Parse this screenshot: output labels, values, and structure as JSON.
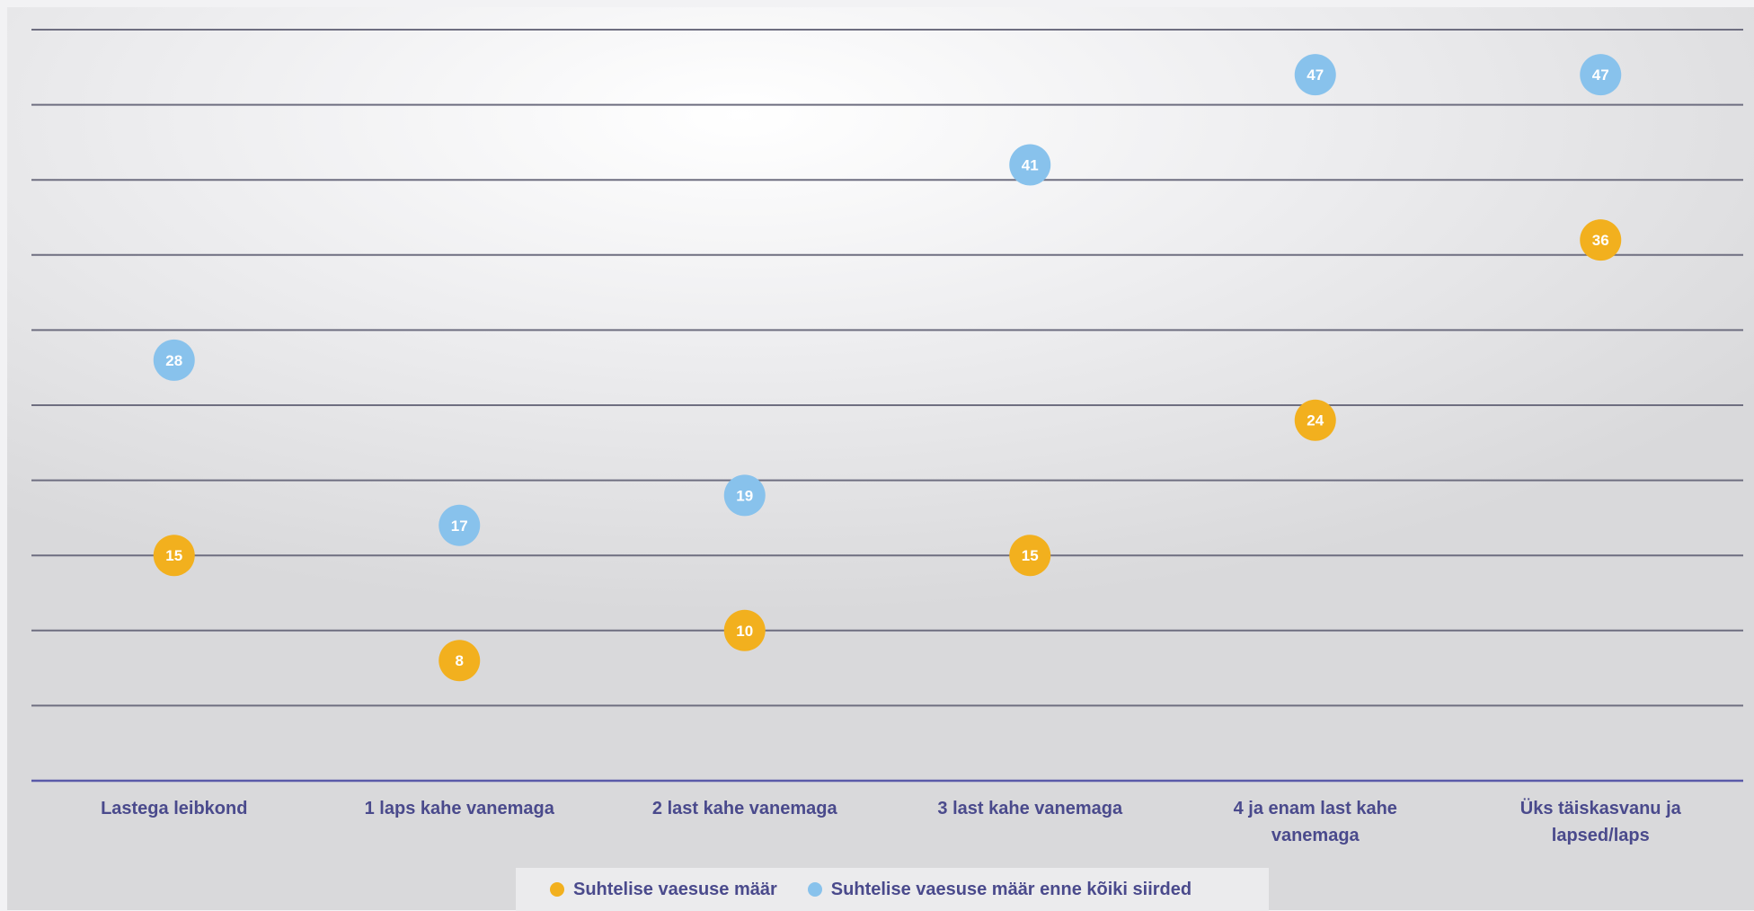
{
  "chart_data": {
    "type": "scatter",
    "categories": [
      "Lastega leibkond",
      "1 laps kahe vanemaga",
      "2 last kahe vanemaga",
      "3 last kahe vanemaga",
      "4 ja enam last kahe vanemaga",
      "Üks täiskasvanu ja lapsed/laps"
    ],
    "category_label_lines": [
      [
        "Lastega leibkond"
      ],
      [
        "1 laps kahe vanemaga"
      ],
      [
        "2 last kahe vanemaga"
      ],
      [
        "3 last kahe vanemaga"
      ],
      [
        "4 ja enam last kahe",
        "vanemaga"
      ],
      [
        "Üks täiskasvanu ja",
        "lapsed/laps"
      ]
    ],
    "series": [
      {
        "name": "Suhtelise vaesuse määr",
        "color": "#f2b01e",
        "values": [
          15,
          8,
          10,
          15,
          24,
          36
        ]
      },
      {
        "name": "Suhtelise vaesuse määr enne kõiki siirded",
        "color": "#88c2ec",
        "values": [
          28,
          17,
          19,
          41,
          47,
          47
        ]
      }
    ],
    "ylim": [
      0,
      50
    ],
    "grid": true,
    "legend_position": "bottom"
  }
}
